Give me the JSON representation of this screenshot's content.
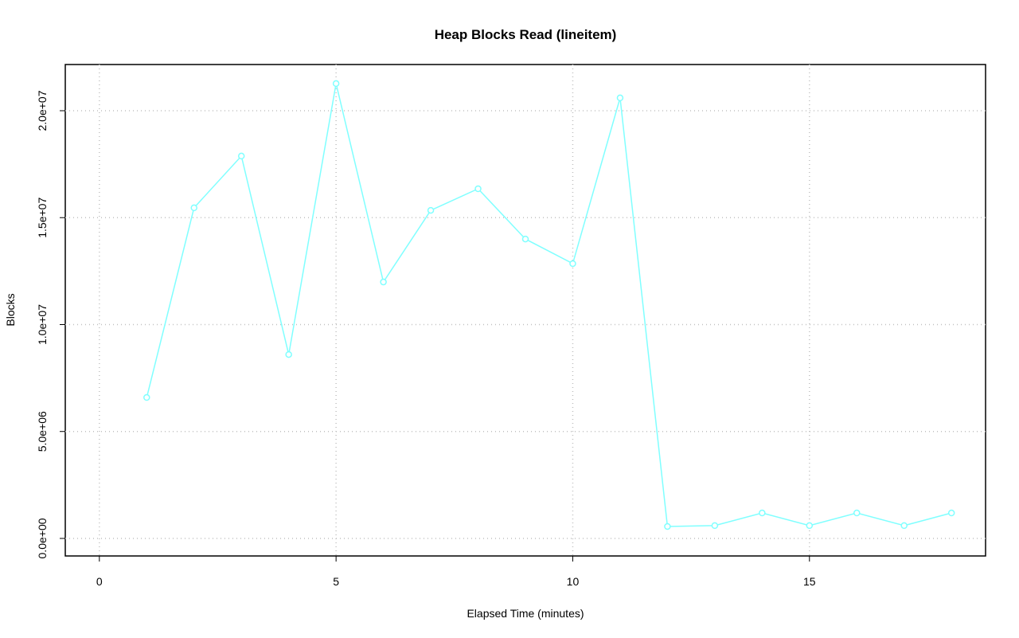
{
  "chart_data": {
    "type": "line",
    "title": "Heap Blocks Read (lineitem)",
    "x_label": "Elapsed Time (minutes)",
    "y_label": "Blocks",
    "x": [
      1,
      2,
      3,
      4,
      5,
      6,
      7,
      8,
      9,
      10,
      11,
      12,
      13,
      14,
      15,
      16,
      17,
      18
    ],
    "series": [
      {
        "name": "lineitem",
        "color": "#80ffff",
        "values": [
          6590000,
          15460000,
          17880000,
          8600000,
          21270000,
          11990000,
          15340000,
          16350000,
          14000000,
          12850000,
          20600000,
          560000,
          600000,
          1190000,
          600000,
          1190000,
          600000,
          1190000
        ]
      }
    ],
    "xlim": [
      -0.72,
      18.72
    ],
    "ylim": [
      -820000,
      22160000
    ],
    "xticks": [
      0,
      5,
      10,
      15
    ],
    "yticks": [
      {
        "value": 0,
        "label": "0.0e+00"
      },
      {
        "value": 5000000,
        "label": "5.0e+06"
      },
      {
        "value": 10000000,
        "label": "1.0e+07"
      },
      {
        "value": 15000000,
        "label": "1.5e+07"
      },
      {
        "value": 20000000,
        "label": "2.0e+07"
      }
    ],
    "grid": true
  }
}
